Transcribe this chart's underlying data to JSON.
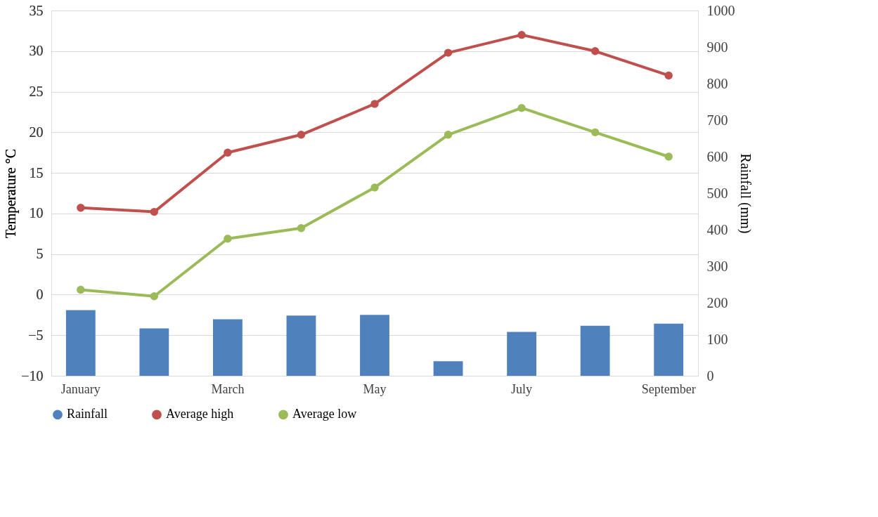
{
  "chart_data": {
    "type": "line",
    "categories": [
      "January",
      null,
      "March",
      null,
      "May",
      null,
      "July",
      null,
      "September"
    ],
    "ylabel": "Temperature °C",
    "y2label": "Rainfall (mm)",
    "ylim": [
      -10,
      35
    ],
    "yticks": [
      -10,
      -5,
      0,
      5,
      10,
      15,
      20,
      25,
      30,
      35
    ],
    "y2lim": [
      0,
      1000
    ],
    "y2ticks": [
      0,
      100,
      200,
      300,
      400,
      500,
      600,
      700,
      800,
      900,
      1000
    ],
    "grid": "y",
    "legend": "bottom",
    "marker": "circle",
    "line_style": "solid",
    "series": [
      {
        "name": "Rainfall",
        "type": "bar",
        "axis": "y2",
        "color": "#4f81bd",
        "values": [
          180,
          130,
          155,
          165,
          167,
          40,
          120,
          137,
          143
        ]
      },
      {
        "name": "Average high",
        "color": "#c0504d",
        "values": [
          10.7,
          10.2,
          17.5,
          19.7,
          23.5,
          29.8,
          32,
          30,
          27
        ]
      },
      {
        "name": "Average low",
        "color": "#9bbb59",
        "values": [
          0.6,
          -0.2,
          6.9,
          8.2,
          13.2,
          19.7,
          23,
          20,
          17
        ]
      }
    ]
  }
}
